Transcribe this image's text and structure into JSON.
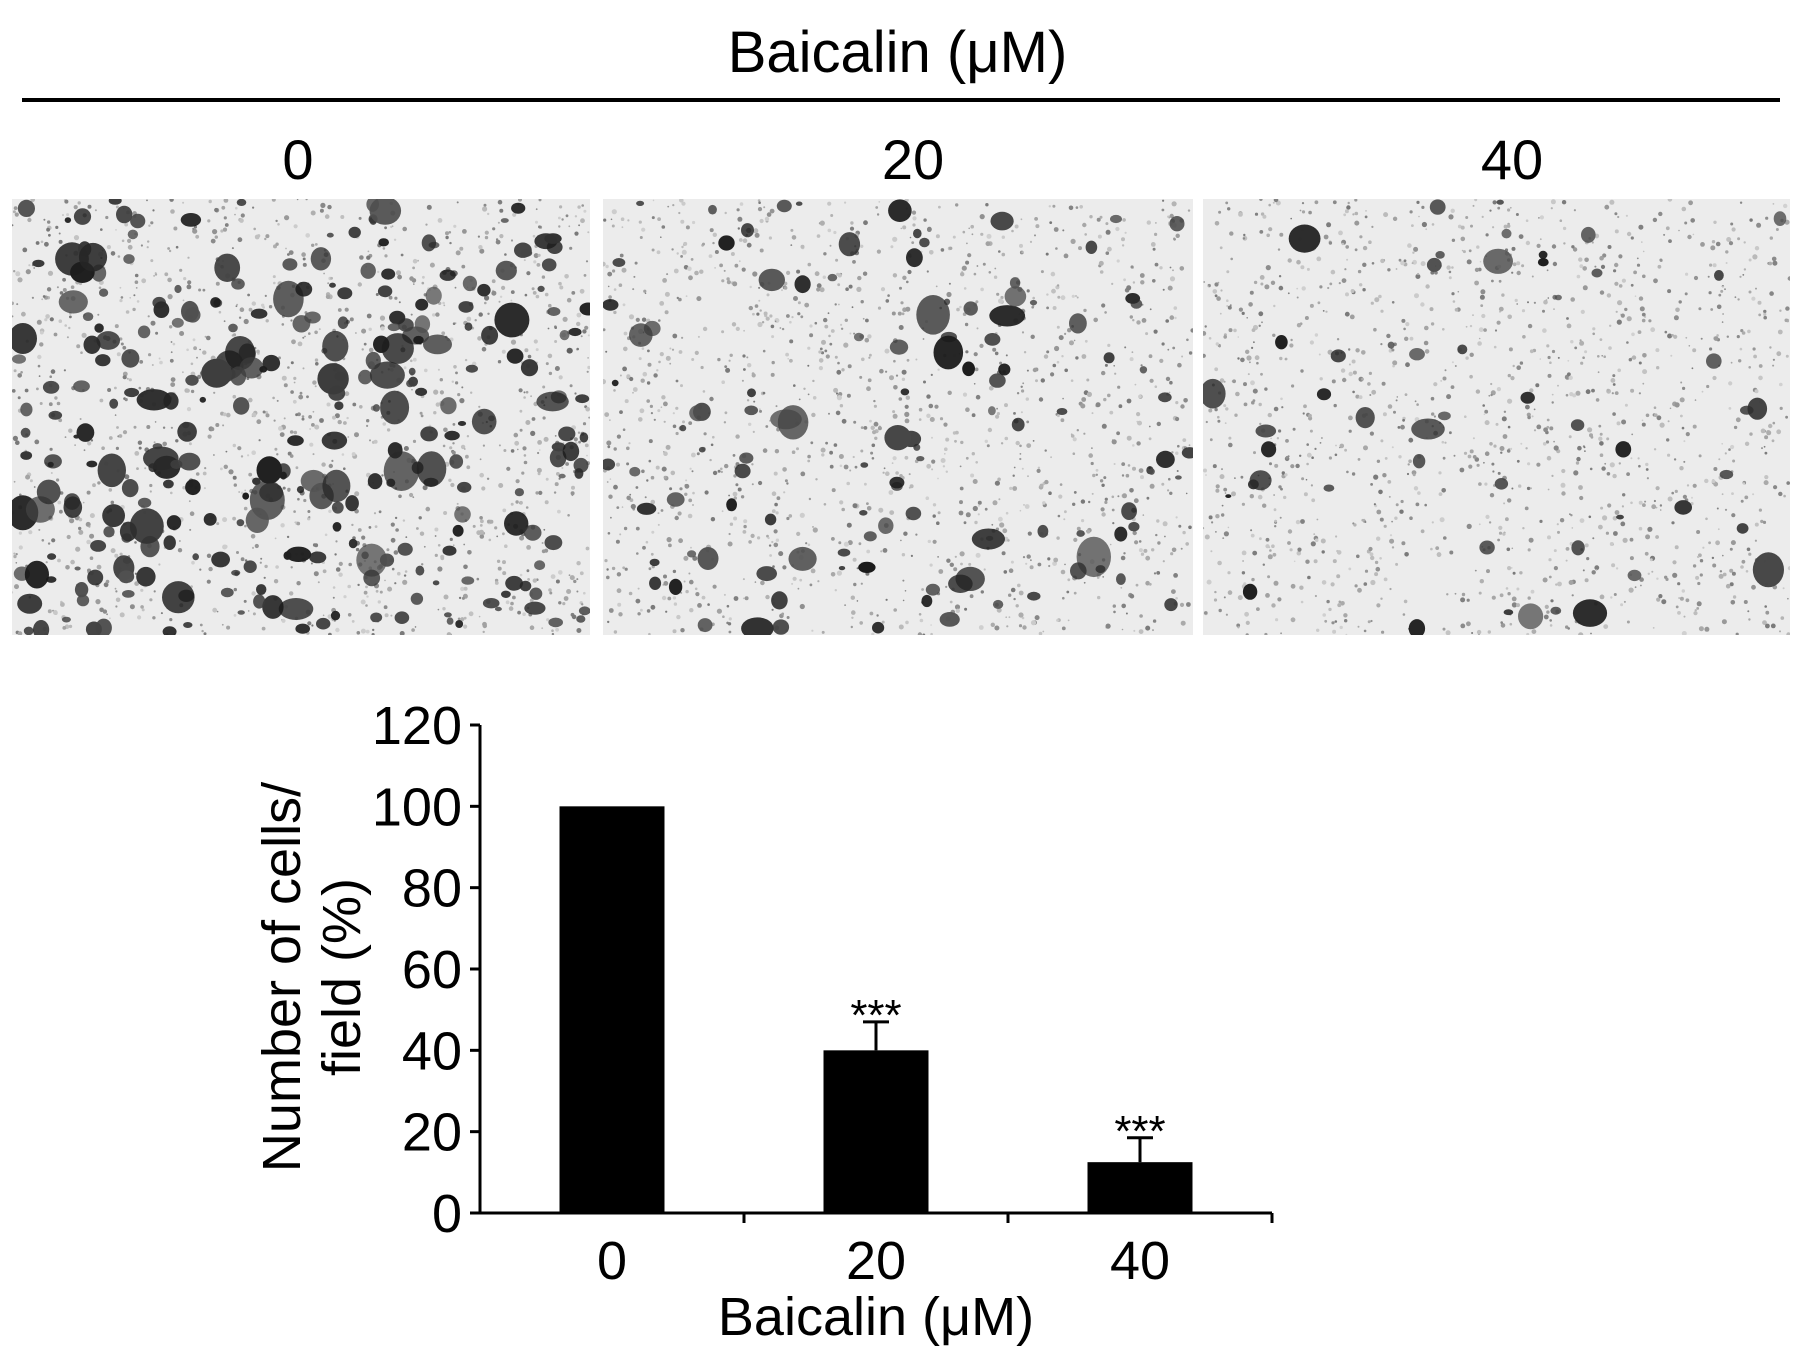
{
  "figure": {
    "header_title": "Baicalin (μM)",
    "panels": [
      {
        "dose_label": "0",
        "density": 0.55,
        "seed": 11
      },
      {
        "dose_label": "20",
        "density": 0.22,
        "seed": 37
      },
      {
        "dose_label": "40",
        "density": 0.1,
        "seed": 73
      }
    ],
    "panel_appearance": "grayscale microscopy of stained cells"
  },
  "chart_data": {
    "type": "bar",
    "categories": [
      "0",
      "20",
      "40"
    ],
    "values": [
      100,
      40,
      12.5
    ],
    "error": [
      0,
      7,
      6
    ],
    "significance": [
      "",
      "***",
      "***"
    ],
    "xlabel": "Baicalin (μM)",
    "ylabel_lines": [
      "Number of cells/",
      "field (%)"
    ],
    "ylim": [
      0,
      120
    ],
    "yticks": [
      0,
      20,
      40,
      60,
      80,
      100,
      120
    ],
    "bar_color": "#000000",
    "grid": false
  }
}
